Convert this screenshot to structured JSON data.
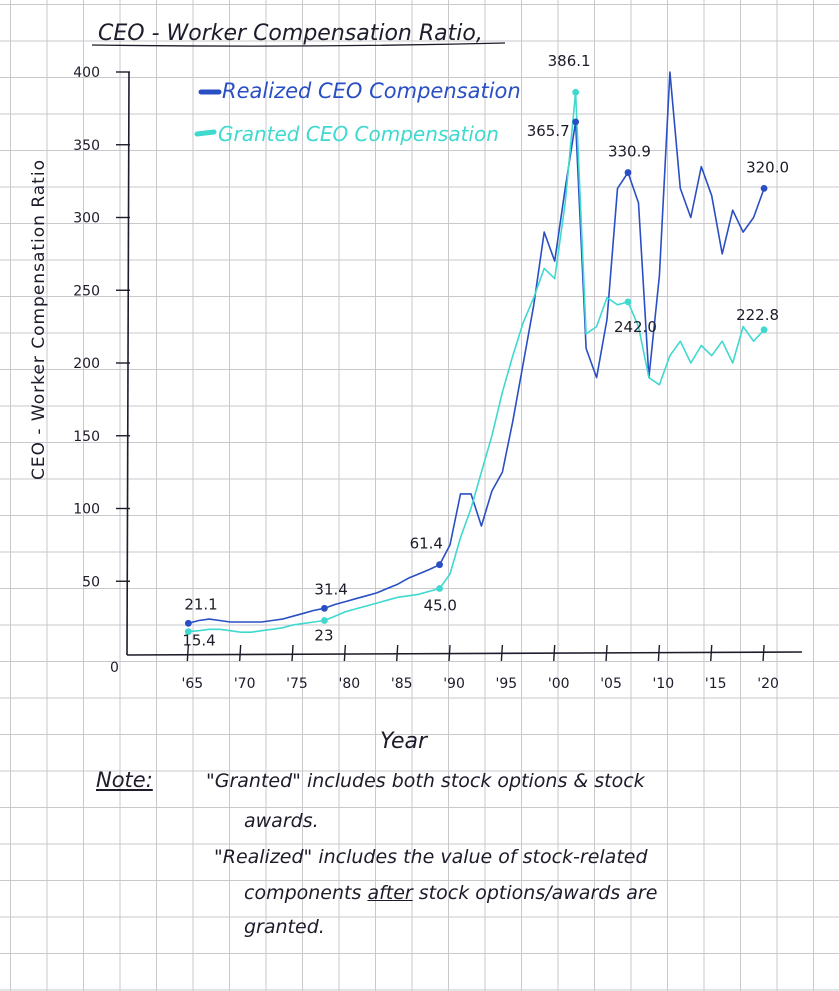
{
  "chart_data": {
    "type": "line",
    "title": "CEO - Worker Compensation Ratio,",
    "xlabel": "Year",
    "ylabel": "CEO - Worker Compensation Ratio",
    "xlim": [
      1960,
      2022
    ],
    "ylim": [
      0,
      400
    ],
    "x_ticks": [
      1965,
      1970,
      1975,
      1980,
      1985,
      1990,
      1995,
      2000,
      2005,
      2010,
      2015,
      2020
    ],
    "x_tick_labels": [
      "'65",
      "'70",
      "'75",
      "'80",
      "'85",
      "'90",
      "'95",
      "'00",
      "'05",
      "'10",
      "'15",
      "'20"
    ],
    "y_ticks": [
      50,
      100,
      150,
      200,
      250,
      300,
      350,
      400
    ],
    "y_tick_labels": [
      "50",
      "100",
      "150",
      "200",
      "250",
      "300",
      "350",
      "400"
    ],
    "origin_label": "0",
    "grid": true,
    "legend_position": "top",
    "series": [
      {
        "name": "Realized CEO Compensation",
        "color": "#2a4fc4",
        "points": [
          [
            1965,
            21.1
          ],
          [
            1966,
            23
          ],
          [
            1967,
            24
          ],
          [
            1968,
            23
          ],
          [
            1969,
            22
          ],
          [
            1970,
            22
          ],
          [
            1971,
            22
          ],
          [
            1972,
            22
          ],
          [
            1973,
            23
          ],
          [
            1974,
            24
          ],
          [
            1975,
            26
          ],
          [
            1976,
            28
          ],
          [
            1977,
            30
          ],
          [
            1978,
            31.4
          ],
          [
            1979,
            34
          ],
          [
            1980,
            36
          ],
          [
            1981,
            38
          ],
          [
            1982,
            40
          ],
          [
            1983,
            42
          ],
          [
            1984,
            45
          ],
          [
            1985,
            48
          ],
          [
            1986,
            52
          ],
          [
            1987,
            55
          ],
          [
            1988,
            58
          ],
          [
            1989,
            61.4
          ],
          [
            1990,
            75
          ],
          [
            1991,
            110
          ],
          [
            1992,
            110
          ],
          [
            1993,
            88
          ],
          [
            1994,
            112
          ],
          [
            1995,
            125
          ],
          [
            1996,
            160
          ],
          [
            1997,
            200
          ],
          [
            1998,
            240
          ],
          [
            1999,
            290
          ],
          [
            2000,
            270
          ],
          [
            2001,
            320
          ],
          [
            2002,
            365.7
          ],
          [
            2003,
            210
          ],
          [
            2004,
            190
          ],
          [
            2005,
            230
          ],
          [
            2006,
            320
          ],
          [
            2007,
            330.9
          ],
          [
            2008,
            310
          ],
          [
            2009,
            190
          ],
          [
            2010,
            260
          ],
          [
            2011,
            400
          ],
          [
            2012,
            320
          ],
          [
            2013,
            300
          ],
          [
            2014,
            335
          ],
          [
            2015,
            315
          ],
          [
            2016,
            275
          ],
          [
            2017,
            305
          ],
          [
            2018,
            290
          ],
          [
            2019,
            300
          ],
          [
            2020,
            320.0
          ]
        ],
        "markers": [
          1965,
          1978,
          1989,
          2002,
          2007,
          2020
        ]
      },
      {
        "name": "Granted CEO Compensation",
        "color": "#3fd9cf",
        "points": [
          [
            1965,
            15.4
          ],
          [
            1966,
            16
          ],
          [
            1967,
            17
          ],
          [
            1968,
            17
          ],
          [
            1969,
            16
          ],
          [
            1970,
            15
          ],
          [
            1971,
            15
          ],
          [
            1972,
            16
          ],
          [
            1973,
            17
          ],
          [
            1974,
            18
          ],
          [
            1975,
            20
          ],
          [
            1976,
            21
          ],
          [
            1977,
            22
          ],
          [
            1978,
            23
          ],
          [
            1979,
            26
          ],
          [
            1980,
            29
          ],
          [
            1981,
            31
          ],
          [
            1982,
            33
          ],
          [
            1983,
            35
          ],
          [
            1984,
            37
          ],
          [
            1985,
            39
          ],
          [
            1986,
            40
          ],
          [
            1987,
            41
          ],
          [
            1988,
            43
          ],
          [
            1989,
            45.0
          ],
          [
            1990,
            55
          ],
          [
            1991,
            80
          ],
          [
            1992,
            100
          ],
          [
            1993,
            125
          ],
          [
            1994,
            150
          ],
          [
            1995,
            180
          ],
          [
            1996,
            205
          ],
          [
            1997,
            228
          ],
          [
            1998,
            245
          ],
          [
            1999,
            265
          ],
          [
            2000,
            258
          ],
          [
            2001,
            310
          ],
          [
            2002,
            386.1
          ],
          [
            2003,
            220
          ],
          [
            2004,
            225
          ],
          [
            2005,
            245
          ],
          [
            2006,
            240
          ],
          [
            2007,
            242.0
          ],
          [
            2008,
            225
          ],
          [
            2009,
            190
          ],
          [
            2010,
            185
          ],
          [
            2011,
            205
          ],
          [
            2012,
            215
          ],
          [
            2013,
            200
          ],
          [
            2014,
            212
          ],
          [
            2015,
            205
          ],
          [
            2016,
            215
          ],
          [
            2017,
            200
          ],
          [
            2018,
            225
          ],
          [
            2019,
            215
          ],
          [
            2020,
            222.8
          ]
        ],
        "markers": [
          1965,
          1978,
          1989,
          2002,
          2007,
          2020
        ]
      }
    ],
    "data_labels": [
      {
        "series": 0,
        "x": 1965,
        "text": "21.1"
      },
      {
        "series": 1,
        "x": 1965,
        "text": "15.4"
      },
      {
        "series": 0,
        "x": 1978,
        "text": "31.4"
      },
      {
        "series": 1,
        "x": 1978,
        "text": "23"
      },
      {
        "series": 0,
        "x": 1989,
        "text": "61.4"
      },
      {
        "series": 1,
        "x": 1989,
        "text": "45.0"
      },
      {
        "series": 0,
        "x": 2002,
        "text": "365.7"
      },
      {
        "series": 1,
        "x": 2002,
        "text": "386.1"
      },
      {
        "series": 0,
        "x": 2007,
        "text": "330.9"
      },
      {
        "series": 1,
        "x": 2007,
        "text": "242.0"
      },
      {
        "series": 0,
        "x": 2020,
        "text": "320.0"
      },
      {
        "series": 1,
        "x": 2020,
        "text": "222.8"
      }
    ]
  },
  "note": {
    "heading": "Note:",
    "line1": "\"Granted\" includes both stock options & stock",
    "line2": "awards.",
    "line3": "\"Realized\" includes the value of stock-related",
    "line4_before": "components ",
    "line4_underlined": "after",
    "line4_after": " stock options/awards are",
    "line5": "granted."
  }
}
